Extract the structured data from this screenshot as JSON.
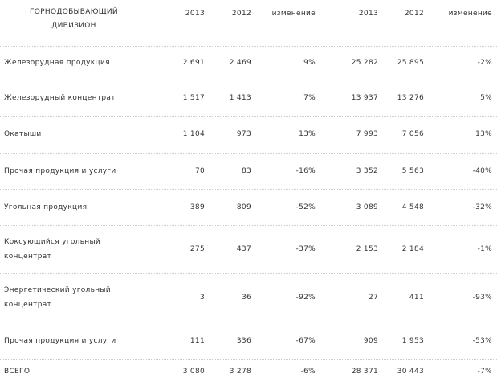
{
  "table": {
    "header": [
      "ГОРНОДОБЫВАЮЩИЙ ДИВИЗИОН",
      "2013",
      "2012",
      "изменение",
      "2013",
      "2012",
      "изменение"
    ],
    "rows": [
      [
        "Железорудная продукция",
        "2 691",
        "2 469",
        "9%",
        "25 282",
        "25 895",
        "-2%"
      ],
      [
        "Железорудный концентрат",
        "1 517",
        "1 413",
        "7%",
        "13 937",
        "13 276",
        "5%"
      ],
      [
        "Окатыши",
        "1 104",
        "973",
        "13%",
        "7 993",
        "7 056",
        "13%"
      ],
      [
        "Прочая продукция и услуги",
        "70",
        "83",
        "-16%",
        "3 352",
        "5 563",
        "-40%"
      ],
      [
        "Угольная продукция",
        "389",
        "809",
        "-52%",
        "3 089",
        "4 548",
        "-32%"
      ],
      [
        "Коксующийся угольный концентрат",
        "275",
        "437",
        "-37%",
        "2 153",
        "2 184",
        "-1%"
      ],
      [
        "Энергетический угольный концентрат",
        "3",
        "36",
        "-92%",
        "27",
        "411",
        "-93%"
      ],
      [
        "Прочая продукция и услуги",
        "111",
        "336",
        "-67%",
        "909",
        "1 953",
        "-53%"
      ],
      [
        "ВСЕГО",
        "3 080",
        "3 278",
        "-6%",
        "28 371",
        "30 443",
        "-7%"
      ]
    ]
  }
}
